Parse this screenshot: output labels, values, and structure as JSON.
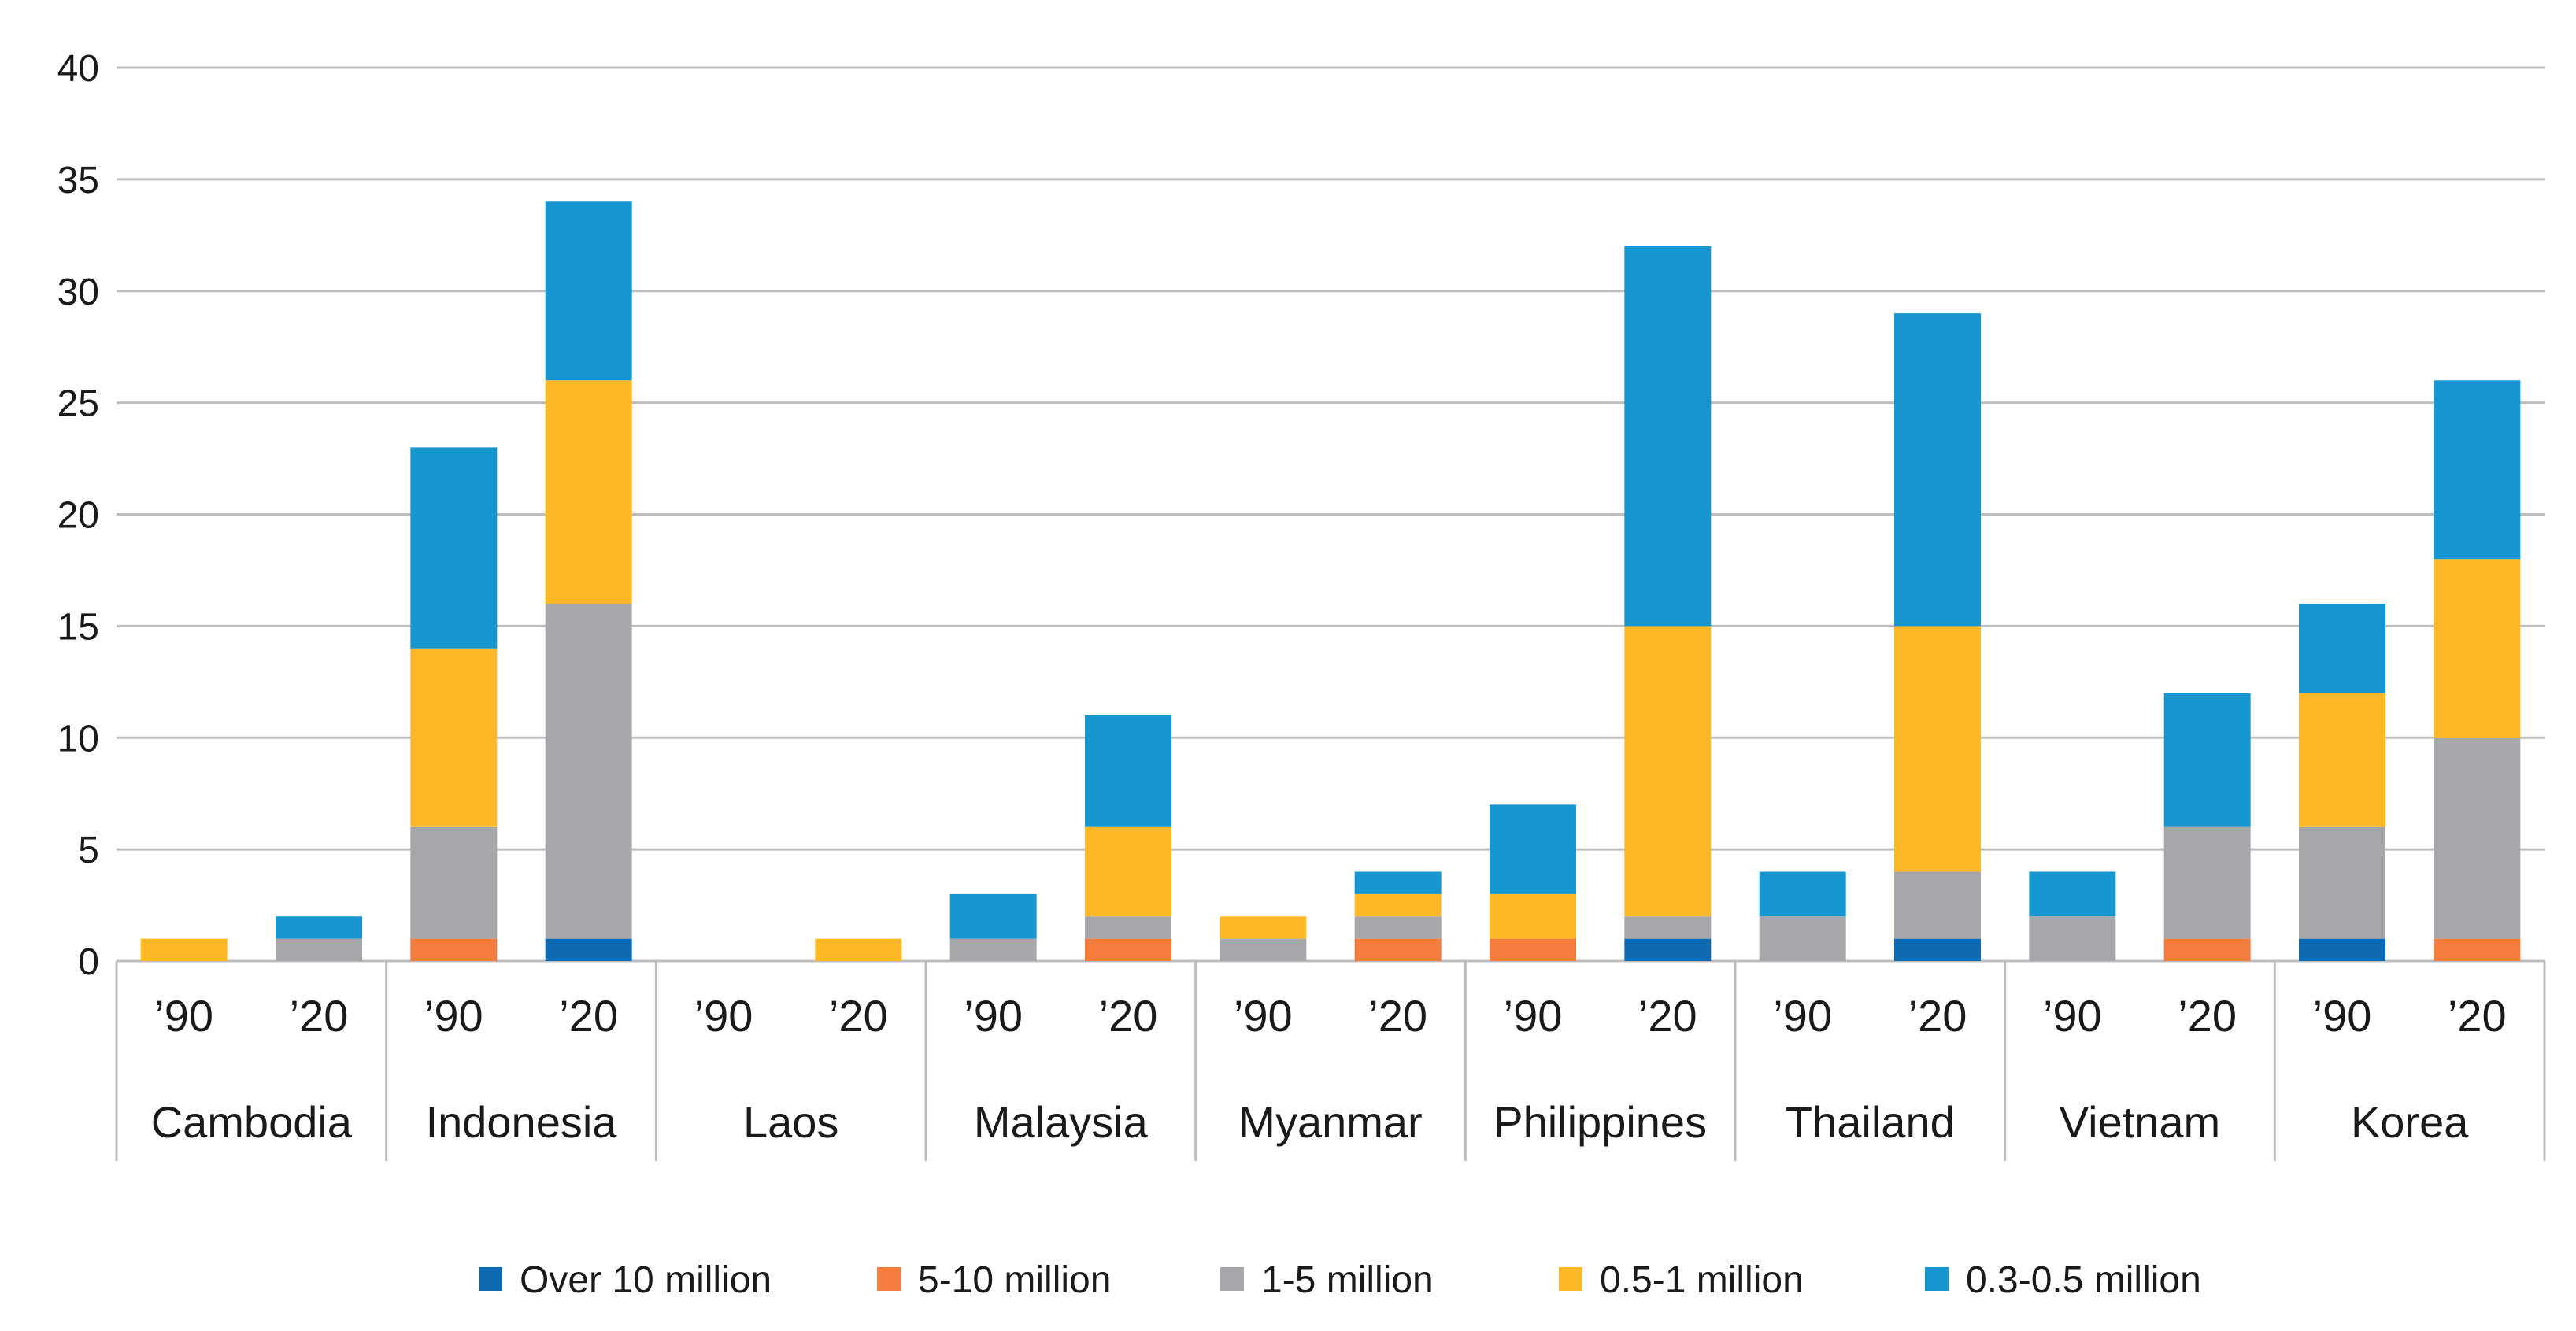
{
  "chart_data": {
    "type": "bar",
    "stacked": true,
    "title": "",
    "xlabel": "",
    "ylabel": "",
    "ylim": [
      0,
      40
    ],
    "yticks": [
      0,
      5,
      10,
      15,
      20,
      25,
      30,
      35,
      40
    ],
    "grid": true,
    "legend_position": "bottom",
    "groups": [
      {
        "name": "Cambodia",
        "bars": [
          {
            "label": "’90",
            "values": [
              0,
              0,
              0,
              1,
              0
            ]
          },
          {
            "label": "’20",
            "values": [
              0,
              0,
              1,
              0,
              1
            ]
          }
        ]
      },
      {
        "name": "Indonesia",
        "bars": [
          {
            "label": "’90",
            "values": [
              0,
              1,
              5,
              8,
              9
            ]
          },
          {
            "label": "’20",
            "values": [
              1,
              0,
              15,
              10,
              8
            ]
          }
        ]
      },
      {
        "name": "Laos",
        "bars": [
          {
            "label": "’90",
            "values": [
              0,
              0,
              0,
              0,
              0
            ]
          },
          {
            "label": "’20",
            "values": [
              0,
              0,
              0,
              1,
              0
            ]
          }
        ]
      },
      {
        "name": "Malaysia",
        "bars": [
          {
            "label": "’90",
            "values": [
              0,
              0,
              1,
              0,
              2
            ]
          },
          {
            "label": "’20",
            "values": [
              0,
              1,
              1,
              4,
              5
            ]
          }
        ]
      },
      {
        "name": "Myanmar",
        "bars": [
          {
            "label": "’90",
            "values": [
              0,
              0,
              1,
              1,
              0
            ]
          },
          {
            "label": "’20",
            "values": [
              0,
              1,
              1,
              1,
              1
            ]
          }
        ]
      },
      {
        "name": "Philippines",
        "bars": [
          {
            "label": "’90",
            "values": [
              0,
              1,
              0,
              2,
              4
            ]
          },
          {
            "label": "’20",
            "values": [
              1,
              0,
              1,
              13,
              17
            ]
          }
        ]
      },
      {
        "name": "Thailand",
        "bars": [
          {
            "label": "’90",
            "values": [
              0,
              0,
              2,
              0,
              2
            ]
          },
          {
            "label": "’20",
            "values": [
              1,
              0,
              3,
              11,
              14
            ]
          }
        ]
      },
      {
        "name": "Vietnam",
        "bars": [
          {
            "label": "’90",
            "values": [
              0,
              0,
              2,
              0,
              2
            ]
          },
          {
            "label": "’20",
            "values": [
              0,
              1,
              5,
              0,
              6
            ]
          }
        ]
      },
      {
        "name": "Korea",
        "bars": [
          {
            "label": "’90",
            "values": [
              1,
              0,
              5,
              6,
              4
            ]
          },
          {
            "label": "’20",
            "values": [
              0,
              1,
              9,
              8,
              8
            ]
          }
        ]
      }
    ],
    "series": [
      {
        "name": "Over 10 million",
        "color": "#0f6ab4"
      },
      {
        "name": "5-10 million",
        "color": "#f47c3c"
      },
      {
        "name": "1-5 million",
        "color": "#a5a7aa"
      },
      {
        "name": "0.5-1 million",
        "color": "#fdb827"
      },
      {
        "name": "0.3-0.5 million",
        "color": "#1797d0"
      }
    ]
  }
}
